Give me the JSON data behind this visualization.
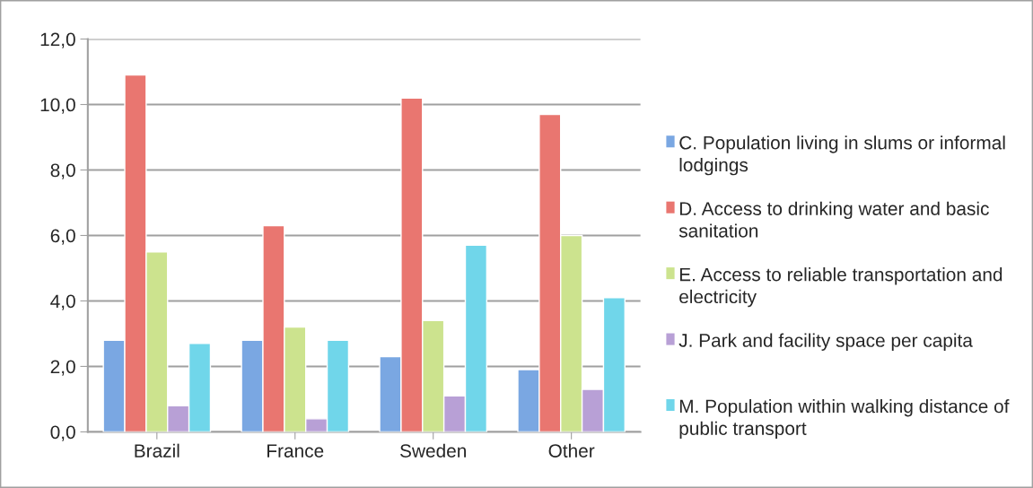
{
  "chart_data": {
    "type": "bar",
    "categories": [
      "Brazil",
      "France",
      "Sweden",
      "Other"
    ],
    "series": [
      {
        "name": "C. Population living in slums or informal lodgings",
        "color": "#7aa7e2",
        "values": [
          2.8,
          2.8,
          2.3,
          1.9
        ]
      },
      {
        "name": "D. Access to drinking water and basic sanitation",
        "color": "#e97670",
        "values": [
          10.9,
          6.3,
          10.2,
          9.7
        ]
      },
      {
        "name": "E. Access to reliable transportation and electricity",
        "color": "#cce38e",
        "values": [
          5.5,
          3.2,
          3.4,
          6.0
        ]
      },
      {
        "name": "J. Park and facility space per capita",
        "color": "#b8a0d6",
        "values": [
          0.8,
          0.4,
          1.1,
          1.3
        ]
      },
      {
        "name": "M. Population within walking distance of public transport",
        "color": "#70d6ea",
        "values": [
          2.7,
          2.8,
          5.7,
          4.1
        ]
      }
    ],
    "ylim": [
      0,
      12
    ],
    "yticks": [
      {
        "value": 0,
        "label": "0,0"
      },
      {
        "value": 2,
        "label": "2,0"
      },
      {
        "value": 4,
        "label": "4,0"
      },
      {
        "value": 6,
        "label": "6,0"
      },
      {
        "value": 8,
        "label": "8,0"
      },
      {
        "value": 10,
        "label": "10,0"
      },
      {
        "value": 12,
        "label": "12,0"
      }
    ],
    "grid": "y",
    "legend": "right"
  }
}
